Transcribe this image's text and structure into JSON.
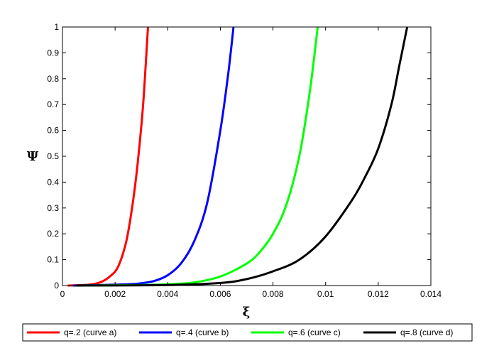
{
  "chart_data": {
    "type": "line",
    "title": "",
    "xlabel": "ξ",
    "ylabel": "Ψ",
    "xlim": [
      0,
      0.014
    ],
    "ylim": [
      0,
      1
    ],
    "x_ticks": [
      0,
      0.002,
      0.004,
      0.006,
      0.008,
      0.01,
      0.012,
      0.014
    ],
    "x_tick_labels": [
      "0",
      "0.002",
      "0.004",
      "0.006",
      "0.008",
      "0.01",
      "0.012",
      "0.014"
    ],
    "y_ticks": [
      0,
      0.1,
      0.2,
      0.3,
      0.4,
      0.5,
      0.6,
      0.7,
      0.8,
      0.9,
      1
    ],
    "y_tick_labels": [
      "0",
      "0.1",
      "0.2",
      "0.3",
      "0.4",
      "0.5",
      "0.6",
      "0.7",
      "0.8",
      "0.9",
      "1"
    ],
    "grid": false,
    "legend_position": "bottom",
    "series": [
      {
        "name": "q=.2 (curve a)",
        "color": "#ff0000",
        "x": [
          0.0002,
          0.0008,
          0.0012,
          0.0015,
          0.0018,
          0.0021,
          0.0024,
          0.0026,
          0.0028,
          0.003,
          0.0031,
          0.00325
        ],
        "y": [
          0,
          0.002,
          0.006,
          0.015,
          0.035,
          0.07,
          0.16,
          0.27,
          0.42,
          0.62,
          0.75,
          1.0
        ]
      },
      {
        "name": "q=.4 (curve b)",
        "color": "#0000ff",
        "x": [
          0.0004,
          0.0015,
          0.0025,
          0.003,
          0.0035,
          0.004,
          0.0045,
          0.005,
          0.0055,
          0.006,
          0.0063,
          0.0065
        ],
        "y": [
          0,
          0.002,
          0.005,
          0.009,
          0.018,
          0.04,
          0.085,
          0.17,
          0.32,
          0.6,
          0.82,
          1.0
        ]
      },
      {
        "name": "q=.6 (curve c)",
        "color": "#00ff00",
        "x": [
          0.0005,
          0.003,
          0.004,
          0.005,
          0.006,
          0.007,
          0.0075,
          0.008,
          0.0085,
          0.009,
          0.0094,
          0.0097
        ],
        "y": [
          0,
          0.002,
          0.005,
          0.012,
          0.035,
          0.085,
          0.13,
          0.2,
          0.31,
          0.5,
          0.75,
          1.0
        ]
      },
      {
        "name": "q=.8 (curve d)",
        "color": "#000000",
        "x": [
          0.0005,
          0.004,
          0.006,
          0.007,
          0.008,
          0.009,
          0.01,
          0.011,
          0.0115,
          0.012,
          0.0125,
          0.0128,
          0.0131
        ],
        "y": [
          0,
          0.002,
          0.01,
          0.025,
          0.055,
          0.1,
          0.19,
          0.33,
          0.42,
          0.53,
          0.7,
          0.85,
          1.0
        ]
      }
    ]
  }
}
